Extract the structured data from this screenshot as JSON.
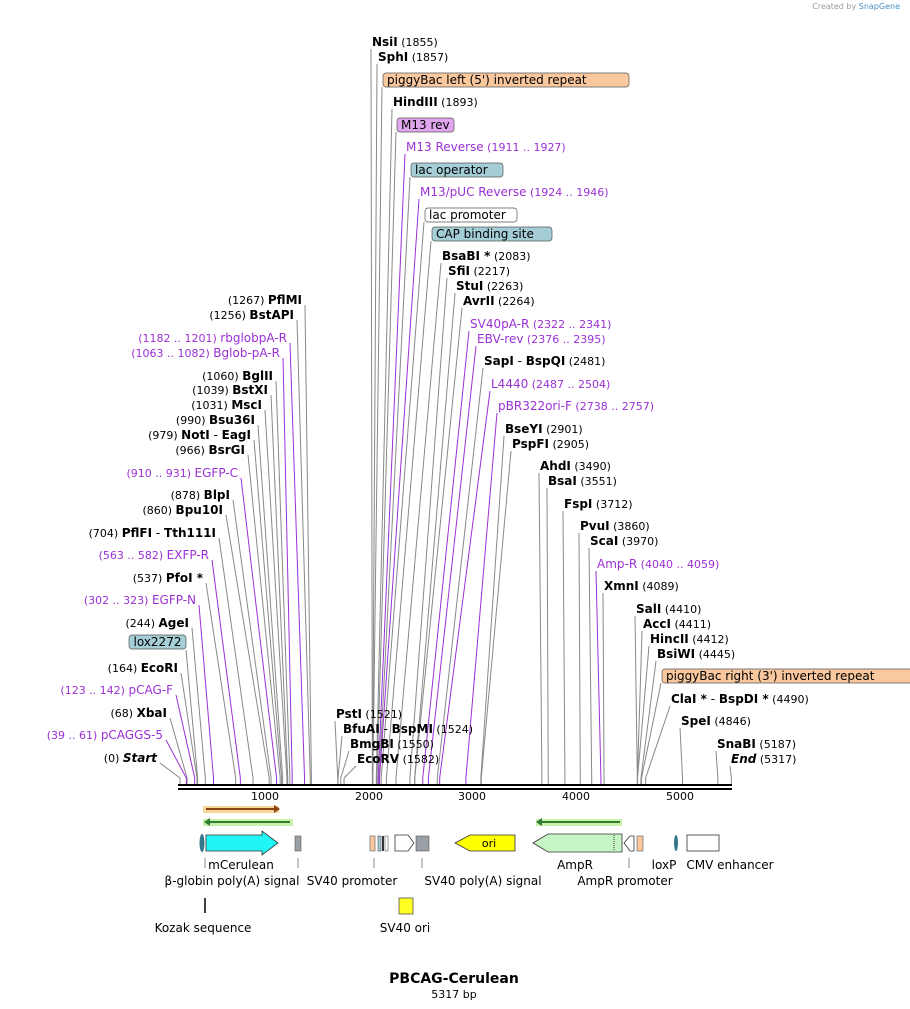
{
  "brand": {
    "prefix": "Created by",
    "name": "SnapGene"
  },
  "plasmid": {
    "name": "PBCAG-Cerulean",
    "length_label": "5317 bp",
    "length": 5317
  },
  "ruler": {
    "ticks": [
      "1000",
      "2000",
      "3000",
      "4000",
      "5000"
    ]
  },
  "left_labels": [
    {
      "kind": "enzyme",
      "name": "PflMI",
      "pos": "(1267)",
      "site": 1267
    },
    {
      "kind": "enzyme",
      "name": "BstAPI",
      "pos": "(1256)",
      "site": 1256
    },
    {
      "kind": "primer",
      "name": "rbglobpA-R",
      "pos": "(1182 .. 1201)",
      "site": 1201
    },
    {
      "kind": "primer",
      "name": "Bglob-pA-R",
      "pos": "(1063 .. 1082)",
      "site": 1082
    },
    {
      "kind": "enzyme",
      "name": "BglII",
      "pos": "(1060)",
      "site": 1060
    },
    {
      "kind": "enzyme",
      "name": "BstXI",
      "pos": "(1039)",
      "site": 1039
    },
    {
      "kind": "enzyme",
      "name": "MscI",
      "pos": "(1031)",
      "site": 1031
    },
    {
      "kind": "enzyme",
      "name": "Bsu36I",
      "pos": "(990)",
      "site": 990
    },
    {
      "kind": "enzyme2",
      "name": "NotI",
      "name2": "EagI",
      "sep": "-",
      "pos": "(979)",
      "site": 979
    },
    {
      "kind": "enzyme",
      "name": "BsrGI",
      "pos": "(966)",
      "site": 966
    },
    {
      "kind": "primer",
      "name": "EGFP-C",
      "pos": "(910 .. 931)",
      "site": 931
    },
    {
      "kind": "enzyme",
      "name": "BlpI",
      "pos": "(878)",
      "site": 878
    },
    {
      "kind": "enzyme",
      "name": "Bpu10I",
      "pos": "(860)",
      "site": 860
    },
    {
      "kind": "enzyme2",
      "name": "PflFI",
      "name2": "Tth111I",
      "sep": "-",
      "pos": "(704)",
      "site": 704
    },
    {
      "kind": "primer",
      "name": "EXFP-R",
      "pos": "(563 .. 582)",
      "site": 582
    },
    {
      "kind": "enzyme",
      "name": "PfoI *",
      "pos": "(537)",
      "site": 537
    },
    {
      "kind": "primer",
      "name": "EGFP-N",
      "pos": "(302 .. 323)",
      "site": 323
    },
    {
      "kind": "enzyme",
      "name": "AgeI",
      "pos": "(244)",
      "site": 244
    },
    {
      "kind": "feature",
      "name": "lox2272",
      "color": "#a4cdd6",
      "site": 170
    },
    {
      "kind": "enzyme",
      "name": "EcoRI",
      "pos": "(164)",
      "site": 164
    },
    {
      "kind": "primer",
      "name": "pCAG-F",
      "pos": "(123 .. 142)",
      "site": 142
    },
    {
      "kind": "enzyme",
      "name": "XbaI",
      "pos": "(68)",
      "site": 68
    },
    {
      "kind": "primer",
      "name": "pCAGGS-5",
      "pos": "(39 .. 61)",
      "site": 61
    },
    {
      "kind": "end",
      "name": "Start",
      "pos": "(0)",
      "site": 0
    }
  ],
  "center_labels": [
    {
      "kind": "enzyme",
      "name": "NsiI",
      "pos": "(1855)",
      "site": 1855
    },
    {
      "kind": "enzyme",
      "name": "SphI",
      "pos": "(1857)",
      "site": 1857
    },
    {
      "kind": "feature",
      "name": "piggyBac left (5') inverted repeat",
      "color": "#f9c89e",
      "site": 1860
    },
    {
      "kind": "enzyme",
      "name": "HindIII",
      "pos": "(1893)",
      "site": 1893
    },
    {
      "kind": "feature",
      "name": "M13 rev",
      "color": "#e0a6ee",
      "site": 1900
    },
    {
      "kind": "primer",
      "name": "M13 Reverse",
      "pos": "(1911 .. 1927)",
      "site": 1911
    },
    {
      "kind": "feature",
      "name": "lac operator",
      "color": "#a4cdd6",
      "site": 1920
    },
    {
      "kind": "primer",
      "name": "M13/pUC Reverse",
      "pos": "(1924 .. 1946)",
      "site": 1924
    },
    {
      "kind": "feature",
      "name": "lac promoter",
      "color": "#ffffff",
      "site": 1940
    },
    {
      "kind": "feature",
      "name": "CAP binding site",
      "color": "#a4cdd6",
      "site": 1990
    },
    {
      "kind": "enzyme",
      "name": "BsaBI *",
      "pos": "(2083)",
      "site": 2083
    },
    {
      "kind": "enzyme",
      "name": "SfiI",
      "pos": "(2217)",
      "site": 2217
    },
    {
      "kind": "enzyme",
      "name": "StuI",
      "pos": "(2263)",
      "site": 2263
    },
    {
      "kind": "enzyme",
      "name": "AvrII",
      "pos": "(2264)",
      "site": 2264
    },
    {
      "kind": "primer",
      "name": "SV40pA-R",
      "pos": "(2322 .. 2341)",
      "site": 2341
    },
    {
      "kind": "primer",
      "name": "EBV-rev",
      "pos": "(2376 .. 2395)",
      "site": 2395
    },
    {
      "kind": "enzyme2",
      "name": "SapI",
      "name2": "BspQI",
      "sep": "-",
      "pos": "(2481)",
      "site": 2481
    },
    {
      "kind": "primer",
      "name": "L4440",
      "pos": "(2487 .. 2504)",
      "site": 2504
    },
    {
      "kind": "primer",
      "name": "pBR322ori-F",
      "pos": "(2738 .. 2757)",
      "site": 2757
    },
    {
      "kind": "enzyme",
      "name": "BseYI",
      "pos": "(2901)",
      "site": 2901
    },
    {
      "kind": "enzyme",
      "name": "PspFI",
      "pos": "(2905)",
      "site": 2905
    }
  ],
  "right_labels": [
    {
      "kind": "enzyme",
      "name": "AhdI",
      "pos": "(3490)",
      "site": 3490
    },
    {
      "kind": "enzyme",
      "name": "BsaI",
      "pos": "(3551)",
      "site": 3551
    },
    {
      "kind": "enzyme",
      "name": "FspI",
      "pos": "(3712)",
      "site": 3712
    },
    {
      "kind": "enzyme",
      "name": "PvuI",
      "pos": "(3860)",
      "site": 3860
    },
    {
      "kind": "enzyme",
      "name": "ScaI",
      "pos": "(3970)",
      "site": 3970
    },
    {
      "kind": "primer",
      "name": "Amp-R",
      "pos": "(4040 .. 4059)",
      "site": 4059
    },
    {
      "kind": "enzyme",
      "name": "XmnI",
      "pos": "(4089)",
      "site": 4089
    },
    {
      "kind": "enzyme",
      "name": "SalI",
      "pos": "(4410)",
      "site": 4410
    },
    {
      "kind": "enzyme",
      "name": "AccI",
      "pos": "(4411)",
      "site": 4411
    },
    {
      "kind": "enzyme",
      "name": "HincII",
      "pos": "(4412)",
      "site": 4412
    },
    {
      "kind": "enzyme",
      "name": "BsiWI",
      "pos": "(4445)",
      "site": 4445
    },
    {
      "kind": "feature",
      "name": "piggyBac right (3') inverted repeat",
      "color": "#f9c89e",
      "site": 4450
    },
    {
      "kind": "enzyme2",
      "name": "ClaI *",
      "name2": "BspDI *",
      "sep": "-",
      "pos": "(4490)",
      "site": 4490
    },
    {
      "kind": "enzyme",
      "name": "SpeI",
      "pos": "(4846)",
      "site": 4846
    },
    {
      "kind": "enzyme",
      "name": "SnaBI",
      "pos": "(5187)",
      "site": 5187
    },
    {
      "kind": "end",
      "name": "End",
      "pos": "(5317)",
      "site": 5317
    }
  ],
  "bottom_labels": [
    {
      "kind": "enzyme",
      "name": "PstI",
      "pos": "(1521)",
      "site": 1521
    },
    {
      "kind": "enzyme2",
      "name": "BfuAI",
      "name2": "BspMI",
      "sep": "-",
      "pos": "(1524)",
      "site": 1524
    },
    {
      "kind": "enzyme",
      "name": "BmgBI",
      "pos": "(1550)",
      "site": 1550
    },
    {
      "kind": "enzyme",
      "name": "EcoRV",
      "pos": "(1582)",
      "site": 1582
    }
  ],
  "features": {
    "mcerulean": {
      "label": "mCerulean",
      "color": "#21f5f5"
    },
    "bglobin": {
      "label": "β-globin poly(A) signal"
    },
    "sv40promoter": {
      "label": "SV40 promoter"
    },
    "sv40polya": {
      "label": "SV40 poly(A) signal"
    },
    "ori": {
      "label": "ori",
      "color": "#ffff00"
    },
    "ampr": {
      "label": "AmpR",
      "color": "#c6f5c6"
    },
    "amprpromoter": {
      "label": "AmpR promoter"
    },
    "loxp": {
      "label": "loxP"
    },
    "cmv": {
      "label": "CMV enhancer"
    },
    "kozak": {
      "label": "Kozak sequence"
    },
    "sv40ori": {
      "label": "SV40 ori",
      "color": "#ffff22"
    }
  },
  "colors": {
    "enzyme": "#000000",
    "primer": "#9b30d6",
    "line": "#888888"
  }
}
